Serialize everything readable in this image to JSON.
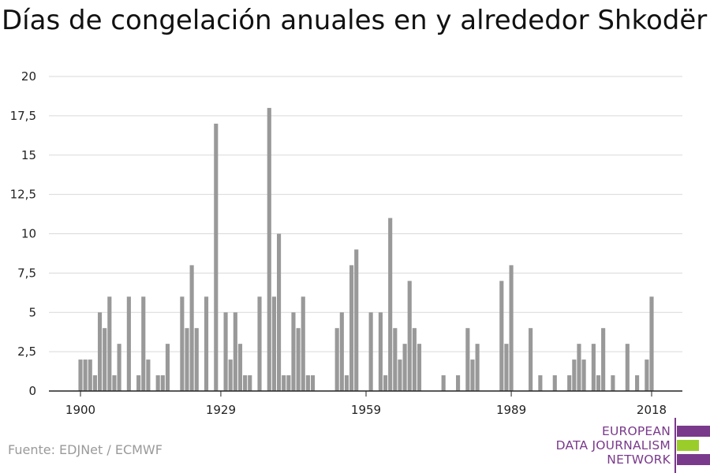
{
  "chart_data": {
    "type": "bar",
    "title": "Días de congelación anuales en y alrededor Shkodër",
    "xlabel": "",
    "ylabel": "",
    "ylim": [
      0,
      20
    ],
    "yticks": [
      0,
      2.5,
      5,
      7.5,
      10,
      12.5,
      15,
      17.5,
      20
    ],
    "ytick_labels": [
      "0",
      "2,5",
      "5",
      "7,5",
      "10",
      "12,5",
      "15",
      "17,5",
      "20"
    ],
    "xticks": [
      1900,
      1929,
      1959,
      1989,
      2018
    ],
    "xlim": [
      1894,
      2024
    ],
    "grid": "horizontal",
    "bar_color": "#999999",
    "x": [
      1900,
      1901,
      1902,
      1903,
      1904,
      1905,
      1906,
      1907,
      1908,
      1909,
      1910,
      1911,
      1912,
      1913,
      1914,
      1915,
      1916,
      1917,
      1918,
      1919,
      1920,
      1921,
      1922,
      1923,
      1924,
      1925,
      1926,
      1927,
      1928,
      1929,
      1930,
      1931,
      1932,
      1933,
      1934,
      1935,
      1936,
      1937,
      1938,
      1939,
      1940,
      1941,
      1942,
      1943,
      1944,
      1945,
      1946,
      1947,
      1948,
      1949,
      1950,
      1951,
      1952,
      1953,
      1954,
      1955,
      1956,
      1957,
      1958,
      1959,
      1960,
      1961,
      1962,
      1963,
      1964,
      1965,
      1966,
      1967,
      1968,
      1969,
      1970,
      1971,
      1972,
      1973,
      1974,
      1975,
      1976,
      1977,
      1978,
      1979,
      1980,
      1981,
      1982,
      1983,
      1984,
      1985,
      1986,
      1987,
      1988,
      1989,
      1990,
      1991,
      1992,
      1993,
      1994,
      1995,
      1996,
      1997,
      1998,
      1999,
      2000,
      2001,
      2002,
      2003,
      2004,
      2005,
      2006,
      2007,
      2008,
      2009,
      2010,
      2011,
      2012,
      2013,
      2014,
      2015,
      2016,
      2017,
      2018
    ],
    "values": [
      2,
      2,
      2,
      1,
      5,
      4,
      6,
      1,
      3,
      0,
      6,
      0,
      1,
      6,
      2,
      0,
      1,
      1,
      3,
      0,
      0,
      6,
      4,
      8,
      4,
      0,
      6,
      0,
      17,
      0,
      5,
      2,
      5,
      3,
      1,
      1,
      0,
      6,
      0,
      18,
      6,
      10,
      1,
      1,
      5,
      4,
      6,
      1,
      1,
      0,
      0,
      0,
      0,
      4,
      5,
      1,
      8,
      9,
      0,
      0,
      5,
      0,
      5,
      1,
      11,
      4,
      2,
      3,
      7,
      4,
      3,
      0,
      0,
      0,
      0,
      1,
      0,
      0,
      1,
      0,
      4,
      2,
      3,
      0,
      0,
      0,
      0,
      7,
      3,
      8,
      0,
      0,
      0,
      4,
      0,
      1,
      0,
      0,
      1,
      0,
      0,
      1,
      2,
      3,
      2,
      0,
      3,
      1,
      4,
      0,
      1,
      0,
      0,
      3,
      0,
      1,
      0,
      2,
      6
    ]
  },
  "source": "Fuente: EDJNet / ECMWF",
  "logo": {
    "lines": [
      "EUROPEAN",
      "DATA JOURNALISM",
      "NETWORK"
    ],
    "purple": "#7a3a8c",
    "green": "#9acd2a"
  }
}
